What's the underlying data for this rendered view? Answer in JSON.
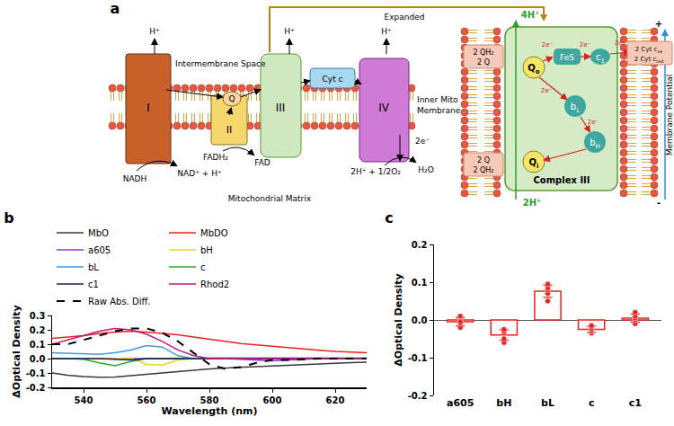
{
  "diagram": {
    "panel": "a",
    "expanded": "Expanded",
    "intermembrane_space": "Intermembrane Space",
    "matrix": "Mitochondrial Matrix",
    "membrane": [
      "Inner Mito",
      "Membrane"
    ],
    "complexes": {
      "I": "I",
      "II": "II",
      "III": "III",
      "IV": "IV",
      "Q": "Q",
      "cyt_c": "Cyt c"
    },
    "protons": [
      "H⁺",
      "H⁺",
      "H⁺"
    ],
    "nadh": "NADH",
    "nad": "NAD⁺ + H⁺",
    "fadh2": "FADH₂",
    "fad": "FAD",
    "oxygen": "2H⁺ + 1/2O₂",
    "water": "H₂O",
    "electrons_iv": "2e⁻",
    "complex_iii": {
      "title": "Complex III",
      "protons_out": "4H⁺",
      "protons_in": "2H⁺",
      "membrane_potential": "Membrane Potential",
      "plus": "+",
      "minus": "-",
      "Qo": {
        "text": "Q",
        "sub": "o"
      },
      "Qi": {
        "text": "Q",
        "sub": "i"
      },
      "FeS": "FeS",
      "c1": {
        "text": "c",
        "sub": "1"
      },
      "bL": {
        "text": "b",
        "sub": "L"
      },
      "bH": {
        "text": "b",
        "sub": "H"
      },
      "electrons": [
        "2e⁻",
        "2e⁻",
        "2e⁻",
        "2e⁻",
        "2e⁻"
      ],
      "qh2_top": "2 QH₂",
      "q_top": "2 Q",
      "q_bottom": "2 Q",
      "qh2_bottom": "2 QH₂",
      "cyt_ox": {
        "text": "2 Cyt c",
        "sub": "ox"
      },
      "cyt_red": {
        "text": "2 Cyt c",
        "sub": "red"
      }
    }
  },
  "chart_data": [
    {
      "type": "line",
      "title": "b",
      "xlabel": "Wavelength (nm)",
      "ylabel": "ΔOptical Density",
      "x": [
        530,
        535,
        540,
        545,
        550,
        555,
        560,
        565,
        570,
        575,
        580,
        585,
        590,
        595,
        600,
        605,
        610,
        615,
        620,
        625,
        630
      ],
      "xlim": [
        530,
        630
      ],
      "xticks": [
        540,
        560,
        580,
        600,
        620
      ],
      "ylim": [
        -0.2,
        0.3
      ],
      "yticks": [
        -0.2,
        -0.1,
        {
          "value": 0,
          "label": "0.0"
        },
        0.1,
        0.2,
        0.3
      ],
      "grid": false,
      "legend": "top",
      "series": [
        {
          "name": "MbO",
          "color": "#3a3a3a",
          "values": [
            -0.1,
            -0.115,
            -0.125,
            -0.13,
            -0.128,
            -0.12,
            -0.112,
            -0.1,
            -0.09,
            -0.08,
            -0.072,
            -0.065,
            -0.06,
            -0.055,
            -0.05,
            -0.045,
            -0.04,
            -0.035,
            -0.03,
            -0.028,
            -0.025
          ]
        },
        {
          "name": "MbDO",
          "color": "#e8231f",
          "values": [
            0.14,
            0.15,
            0.16,
            0.175,
            0.185,
            0.19,
            0.185,
            0.175,
            0.165,
            0.15,
            0.135,
            0.12,
            0.105,
            0.095,
            0.085,
            0.075,
            0.065,
            0.058,
            0.05,
            0.045,
            0.04
          ]
        },
        {
          "name": "a605",
          "color": "#9b30d9",
          "values": [
            0,
            0,
            0,
            0,
            0,
            0,
            0,
            0,
            0,
            0,
            0,
            0,
            -0.005,
            -0.01,
            -0.015,
            -0.01,
            -0.005,
            0,
            0,
            0,
            0
          ]
        },
        {
          "name": "bH",
          "color": "#f2d21b",
          "values": [
            0,
            0,
            0,
            0,
            0,
            0.005,
            -0.04,
            -0.045,
            -0.01,
            0,
            0,
            0,
            0,
            0,
            0,
            0,
            0,
            0,
            0,
            0,
            0
          ]
        },
        {
          "name": "bL",
          "color": "#3d9be9",
          "values": [
            0.04,
            0.038,
            0.035,
            0.03,
            0.04,
            0.06,
            0.09,
            0.08,
            0.02,
            0,
            0.005,
            0.005,
            0.005,
            0.005,
            0.005,
            0.005,
            0.005,
            0.005,
            0.005,
            0.005,
            0.005
          ]
        },
        {
          "name": "c",
          "color": "#2fa82f",
          "values": [
            0,
            0,
            -0.005,
            -0.03,
            -0.05,
            -0.02,
            0,
            0,
            0,
            0,
            0,
            0,
            0,
            0,
            0,
            0,
            0,
            0,
            0,
            0,
            0
          ]
        },
        {
          "name": "c1",
          "color": "#1a1a5e",
          "values": [
            0,
            0,
            0,
            0,
            -0.005,
            -0.01,
            0,
            0,
            0,
            0,
            0,
            0,
            0,
            0,
            0,
            0,
            0,
            0,
            0,
            0,
            0
          ]
        },
        {
          "name": "Rhod2",
          "color": "#c2187a",
          "values": [
            0.1,
            0.13,
            0.16,
            0.19,
            0.21,
            0.2,
            0.17,
            0.12,
            0.06,
            0.02,
            0,
            0,
            0,
            0,
            0,
            0,
            0,
            0,
            0,
            0,
            0
          ]
        },
        {
          "name": "Raw Abs. Diff.",
          "color": "#000000",
          "line_style": "dashed",
          "values": [
            0.1,
            0.1,
            0.13,
            0.16,
            0.19,
            0.21,
            0.21,
            0.18,
            0.12,
            0.04,
            -0.04,
            -0.07,
            -0.06,
            -0.03,
            -0.01,
            -0.01,
            -0.005,
            0,
            0,
            0,
            0
          ]
        }
      ]
    },
    {
      "type": "bar",
      "title": "c",
      "ylabel": "ΔOptical Density",
      "categories": [
        "a605",
        "bH",
        "bL",
        "c",
        "c1"
      ],
      "values": [
        -0.005,
        -0.04,
        0.076,
        -0.025,
        0.005
      ],
      "errors": [
        0.011,
        0.014,
        0.016,
        0.008,
        0.011
      ],
      "points": [
        [
          -0.02,
          -0.01,
          0,
          0.01,
          -0.005
        ],
        [
          -0.06,
          -0.05,
          -0.035,
          -0.03,
          -0.025
        ],
        [
          0.05,
          0.07,
          0.08,
          0.085,
          0.095
        ],
        [
          -0.035,
          -0.03,
          -0.025,
          -0.02,
          -0.015
        ],
        [
          -0.01,
          0,
          0.005,
          0.01,
          0.02
        ]
      ],
      "color": "#e8231f",
      "marker": "circle",
      "ylim": [
        -0.2,
        0.2
      ],
      "yticks": [
        -0.2,
        -0.1,
        {
          "value": 0,
          "label": "0.0"
        },
        0.1,
        0.2
      ],
      "grid": false
    }
  ]
}
